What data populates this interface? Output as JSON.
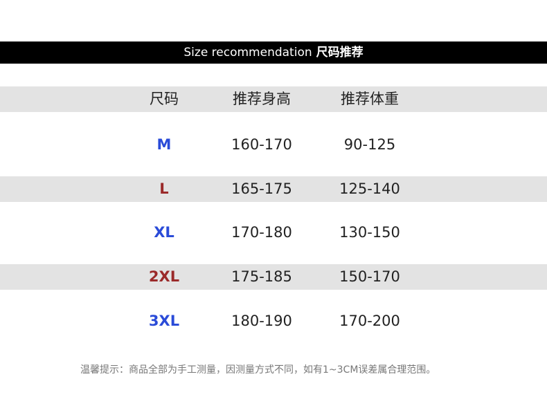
{
  "banner": {
    "title_en": "Size recommendation",
    "title_cn": "尺码推荐"
  },
  "table": {
    "headers": [
      "尺码",
      "推荐身高",
      "推荐体重"
    ],
    "rows": [
      {
        "size": "M",
        "height": "160-170",
        "weight": "90-125",
        "color": "#2a4bd8"
      },
      {
        "size": "L",
        "height": "165-175",
        "weight": "125-140",
        "color": "#9b2a2a"
      },
      {
        "size": "XL",
        "height": "170-180",
        "weight": "130-150",
        "color": "#2a4bd8"
      },
      {
        "size": "2XL",
        "height": "175-185",
        "weight": "150-170",
        "color": "#9b2a2a"
      },
      {
        "size": "3XL",
        "height": "180-190",
        "weight": "170-200",
        "color": "#2a4bd8"
      }
    ]
  },
  "note": "温馨提示：商品全部为手工测量，因测量方式不同，如有1~3CM误差属合理范围。"
}
